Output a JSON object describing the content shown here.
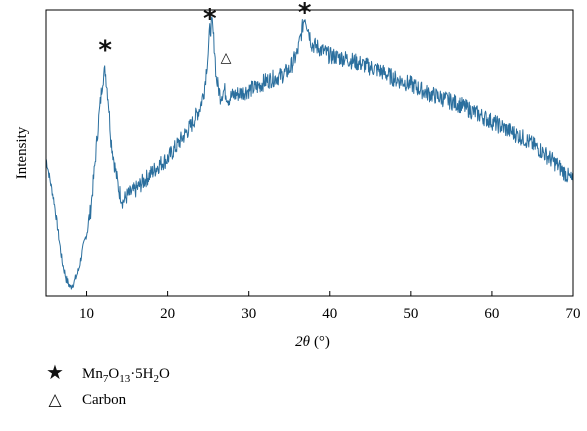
{
  "chart_data": {
    "type": "line",
    "xlabel_symbol": "2θ",
    "xlabel_unit": "(°)",
    "ylabel": "Intensity",
    "xlim": [
      5,
      70
    ],
    "ylim": [
      0,
      100
    ],
    "xticks": [
      10,
      20,
      30,
      40,
      50,
      60,
      70
    ],
    "y_tick_labels": false,
    "grid": false,
    "line_color": "#2b6f9e",
    "series": [
      {
        "points": [
          [
            5.0,
            48
          ],
          [
            6.0,
            33
          ],
          [
            7.0,
            12
          ],
          [
            7.5,
            6
          ],
          [
            8.0,
            3
          ],
          [
            8.5,
            5
          ],
          [
            9.0,
            9
          ],
          [
            9.5,
            16
          ],
          [
            10.0,
            22
          ],
          [
            10.5,
            30
          ],
          [
            11.0,
            45
          ],
          [
            11.5,
            62
          ],
          [
            12.0,
            76
          ],
          [
            12.3,
            79
          ],
          [
            12.7,
            68
          ],
          [
            13.0,
            55
          ],
          [
            13.5,
            45
          ],
          [
            14.0,
            37
          ],
          [
            14.5,
            33
          ],
          [
            15.0,
            35
          ],
          [
            16.0,
            37
          ],
          [
            17.0,
            40
          ],
          [
            18.0,
            43
          ],
          [
            19.0,
            46
          ],
          [
            20.0,
            48
          ],
          [
            21.0,
            52
          ],
          [
            22.0,
            56
          ],
          [
            23.0,
            60
          ],
          [
            24.0,
            66
          ],
          [
            24.5,
            72
          ],
          [
            25.0,
            85
          ],
          [
            25.2,
            93
          ],
          [
            25.5,
            95
          ],
          [
            25.8,
            86
          ],
          [
            26.0,
            76
          ],
          [
            26.5,
            70
          ],
          [
            27.0,
            72
          ],
          [
            27.5,
            69
          ],
          [
            28.0,
            70
          ],
          [
            29.0,
            71
          ],
          [
            30.0,
            72
          ],
          [
            31.0,
            73
          ],
          [
            32.0,
            75
          ],
          [
            33.0,
            76
          ],
          [
            34.0,
            77
          ],
          [
            35.0,
            79
          ],
          [
            36.0,
            85
          ],
          [
            36.5,
            92
          ],
          [
            36.9,
            98
          ],
          [
            37.3,
            94
          ],
          [
            37.8,
            88
          ],
          [
            38.5,
            87
          ],
          [
            40.0,
            84
          ],
          [
            42.0,
            83
          ],
          [
            44.0,
            81
          ],
          [
            46.0,
            79
          ],
          [
            48.0,
            76
          ],
          [
            50.0,
            74
          ],
          [
            52.0,
            71
          ],
          [
            54.0,
            69
          ],
          [
            56.0,
            67
          ],
          [
            58.0,
            64
          ],
          [
            60.0,
            61
          ],
          [
            62.0,
            58
          ],
          [
            64.0,
            55
          ],
          [
            66.0,
            51
          ],
          [
            68.0,
            46
          ],
          [
            70.0,
            40
          ]
        ]
      }
    ],
    "annotations": [
      {
        "label": "*",
        "x": 12.3,
        "y": 88,
        "kind": "star"
      },
      {
        "label": "*",
        "x": 25.2,
        "y": 99,
        "kind": "star"
      },
      {
        "label": "*",
        "x": 36.9,
        "y": 101,
        "kind": "star"
      },
      {
        "label": "△",
        "x": 27.2,
        "y": 84,
        "kind": "triangle"
      }
    ],
    "legend": [
      {
        "symbol": "★",
        "text_main": "Mn",
        "sub1": "7",
        "text_mid": "O",
        "sub2": "13",
        "text_mid2": "·5H",
        "sub3": "2",
        "text_end": "O"
      },
      {
        "symbol": "△",
        "text_main": "Carbon"
      }
    ]
  }
}
